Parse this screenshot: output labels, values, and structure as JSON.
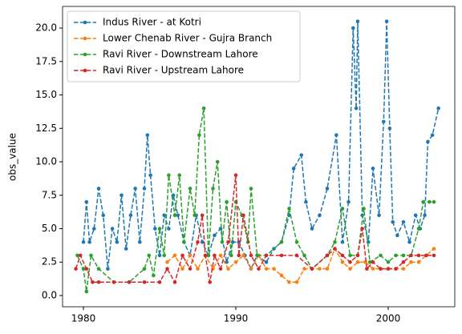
{
  "chart_data": {
    "type": "line",
    "y_label": "obs_value",
    "legend": "upper left",
    "grid": false,
    "xlim": [
      1978.63,
      2004.37
    ],
    "xticks": [
      1980,
      1990,
      2000
    ],
    "ylim": [
      -0.84,
      21.62
    ],
    "yticks": [
      {
        "value": 0,
        "label": "0.0"
      },
      2.5,
      {
        "value": 5,
        "label": "5.0"
      },
      7.5,
      {
        "value": 10,
        "label": "10.0"
      },
      12.5,
      {
        "value": 15,
        "label": "15.0"
      },
      17.5,
      {
        "value": 20,
        "label": "20.0"
      }
    ],
    "series": [
      {
        "name": "Indus River - at Kotri",
        "color": "#1f77b4",
        "x": [
          1980.0,
          1980.2,
          1980.4,
          1980.7,
          1981.0,
          1981.3,
          1981.6,
          1981.9,
          1982.2,
          1982.5,
          1982.8,
          1983.1,
          1983.4,
          1983.7,
          1984.0,
          1984.2,
          1984.4,
          1984.7,
          1985.0,
          1985.3,
          1985.6,
          1985.9,
          1986.2,
          1986.6,
          1987.0,
          1987.4,
          1987.8,
          1988.2,
          1988.6,
          1989.0,
          1989.4,
          1989.8,
          1990.2,
          1990.6,
          1991.0,
          1991.4,
          1992.0,
          1992.5,
          1993.0,
          1993.5,
          1993.8,
          1994.3,
          1994.6,
          1995.0,
          1995.5,
          1996.0,
          1996.6,
          1997.0,
          1997.4,
          1997.7,
          1997.9,
          1998.0,
          1998.3,
          1998.7,
          1999.0,
          1999.4,
          1999.7,
          1999.9,
          2000.1,
          2000.3,
          2000.6,
          2001.0,
          2001.4,
          2001.8,
          2002.1,
          2002.4,
          2002.6,
          2002.9,
          2003.3
        ],
        "values": [
          4,
          7,
          4,
          5,
          8,
          6,
          2,
          5,
          4,
          7.5,
          3.5,
          6,
          8,
          4,
          8,
          12,
          9,
          5,
          3,
          6,
          5,
          7.5,
          6,
          4,
          3,
          6,
          4,
          3,
          4.5,
          5,
          2.5,
          4,
          4,
          3,
          2,
          3,
          2.5,
          3.5,
          4,
          6,
          9.5,
          10.5,
          7,
          5,
          6,
          8,
          12,
          4,
          7,
          20,
          14,
          20.5,
          6,
          4,
          9.5,
          6,
          13,
          20.5,
          12.5,
          5.5,
          4.5,
          5.5,
          4,
          6,
          5,
          6,
          11.5,
          12,
          14
        ]
      },
      {
        "name": "Lower Chenab River - Gujra Branch",
        "color": "#ff7f0e",
        "x": [
          1985.5,
          1986.0,
          1986.5,
          1987.0,
          1987.5,
          1988.0,
          1988.5,
          1989.0,
          1989.5,
          1990.0,
          1990.5,
          1991.0,
          1991.5,
          1992.0,
          1992.5,
          1993.0,
          1993.5,
          1994.0,
          1994.5,
          1995.0,
          1995.5,
          1996.0,
          1996.5,
          1997.0,
          1997.5,
          1998.0,
          1998.5,
          1999.0,
          1999.5,
          2000.0,
          2000.5,
          2001.0,
          2001.5,
          2002.0,
          2002.5,
          2003.0
        ],
        "values": [
          2.5,
          3,
          2,
          3,
          2,
          3,
          2,
          3,
          2,
          2.5,
          3,
          2,
          3,
          2,
          2,
          1.5,
          1,
          1,
          2,
          2,
          2,
          2,
          3.5,
          2.5,
          2,
          2.5,
          2.5,
          2,
          2,
          2,
          2,
          2,
          2.5,
          2.5,
          3,
          3.5
        ]
      },
      {
        "name": "Ravi River - Downstream Lahore",
        "color": "#2ca02c",
        "x": [
          1979.6,
          1980.0,
          1980.2,
          1980.5,
          1981.0,
          1982.0,
          1983.0,
          1984.0,
          1984.3,
          1984.6,
          1985.0,
          1985.3,
          1985.6,
          1986.0,
          1986.3,
          1986.6,
          1987.0,
          1987.3,
          1987.6,
          1987.9,
          1988.2,
          1988.5,
          1988.8,
          1989.1,
          1989.4,
          1989.7,
          1990.0,
          1990.4,
          1990.8,
          1991.0,
          1991.4,
          1992.0,
          1993.0,
          1993.5,
          1994.0,
          1994.5,
          1995.0,
          1996.0,
          1996.5,
          1997.0,
          1997.5,
          1998.0,
          1998.4,
          1998.8,
          1999.5,
          2000.0,
          2000.5,
          2001.0,
          2001.5,
          2002.0,
          2002.3,
          2002.7,
          2003.0
        ],
        "values": [
          3,
          2,
          0.3,
          3,
          2,
          1,
          1,
          2,
          3,
          1.5,
          5,
          3,
          9,
          6,
          9,
          4,
          8,
          6,
          12,
          14,
          3,
          8,
          10,
          4,
          7,
          3,
          7,
          6,
          4,
          8,
          3,
          3,
          4,
          6.5,
          4,
          3,
          2,
          3,
          4,
          6.5,
          3,
          3,
          6.5,
          2.5,
          3,
          2.5,
          3,
          3,
          3,
          5,
          7,
          7,
          7
        ]
      },
      {
        "name": "Ravi River - Upstream Lahore",
        "color": "#d62728",
        "x": [
          1979.5,
          1979.8,
          1980.2,
          1980.6,
          1981.0,
          1982.0,
          1983.0,
          1984.0,
          1985.0,
          1985.5,
          1986.0,
          1986.5,
          1987.0,
          1987.5,
          1987.8,
          1988.0,
          1988.3,
          1988.6,
          1989.0,
          1989.5,
          1990.0,
          1990.2,
          1990.5,
          1991.0,
          1991.5,
          1992.0,
          1993.0,
          1994.0,
          1995.0,
          1996.0,
          1996.5,
          1997.0,
          1997.5,
          1998.0,
          1998.3,
          1998.6,
          1999.0,
          1999.5,
          2000.0,
          2000.5,
          2001.0,
          2001.5,
          2002.0,
          2002.5,
          2003.0
        ],
        "values": [
          2,
          3,
          2,
          1,
          1,
          1,
          1,
          1,
          1,
          2,
          1,
          3,
          2,
          4,
          6,
          3,
          1,
          3,
          2,
          4,
          9,
          3,
          6,
          3,
          2,
          3,
          3,
          3,
          2,
          3,
          3.5,
          3,
          2.5,
          3,
          5,
          2,
          2.5,
          2,
          2,
          2,
          2.5,
          3,
          3,
          3,
          3
        ]
      }
    ]
  }
}
